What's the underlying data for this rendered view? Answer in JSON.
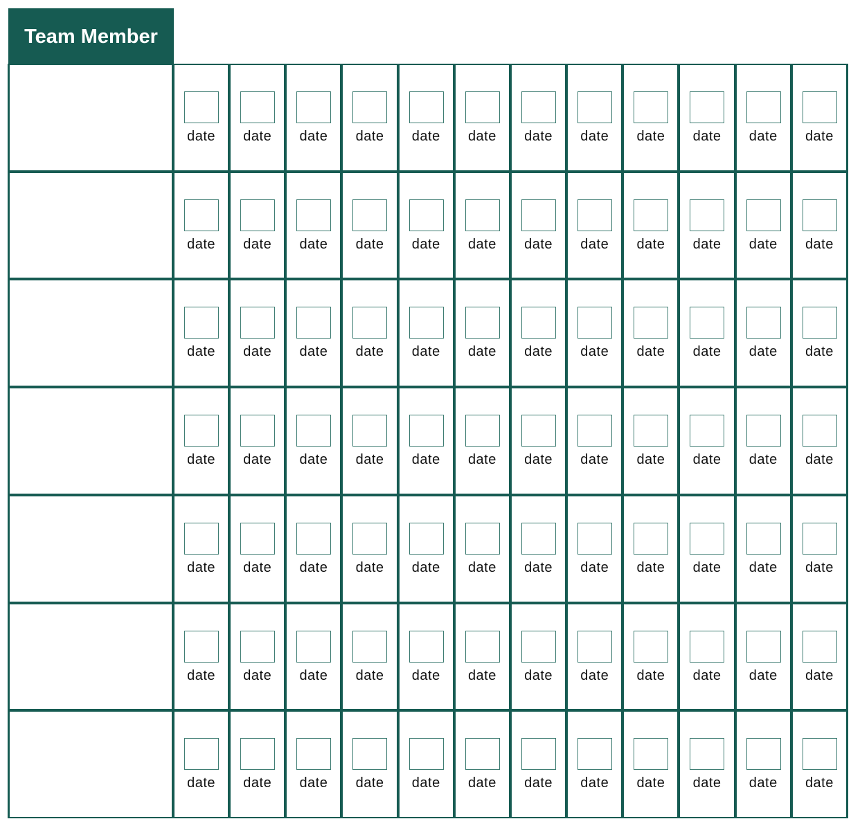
{
  "header": {
    "title": "Team Member"
  },
  "accent_color": "#165b52",
  "rows": [
    {
      "name": "",
      "cells": [
        "date",
        "date",
        "date",
        "date",
        "date",
        "date",
        "date",
        "date",
        "date",
        "date",
        "date",
        "date"
      ]
    },
    {
      "name": "",
      "cells": [
        "date",
        "date",
        "date",
        "date",
        "date",
        "date",
        "date",
        "date",
        "date",
        "date",
        "date",
        "date"
      ]
    },
    {
      "name": "",
      "cells": [
        "date",
        "date",
        "date",
        "date",
        "date",
        "date",
        "date",
        "date",
        "date",
        "date",
        "date",
        "date"
      ]
    },
    {
      "name": "",
      "cells": [
        "date",
        "date",
        "date",
        "date",
        "date",
        "date",
        "date",
        "date",
        "date",
        "date",
        "date",
        "date"
      ]
    },
    {
      "name": "",
      "cells": [
        "date",
        "date",
        "date",
        "date",
        "date",
        "date",
        "date",
        "date",
        "date",
        "date",
        "date",
        "date"
      ]
    },
    {
      "name": "",
      "cells": [
        "date",
        "date",
        "date",
        "date",
        "date",
        "date",
        "date",
        "date",
        "date",
        "date",
        "date",
        "date"
      ]
    },
    {
      "name": "",
      "cells": [
        "date",
        "date",
        "date",
        "date",
        "date",
        "date",
        "date",
        "date",
        "date",
        "date",
        "date",
        "date"
      ]
    }
  ]
}
